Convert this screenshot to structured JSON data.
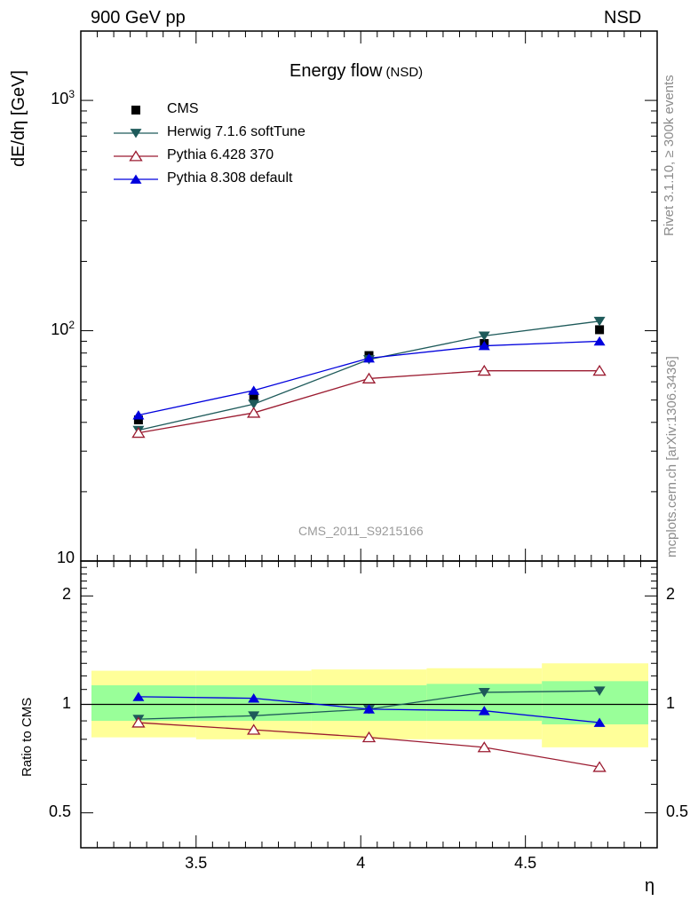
{
  "header": {
    "left": "900 GeV pp",
    "right": "NSD"
  },
  "side_labels": {
    "rivet": "Rivet 3.1.10, ≥ 300k events",
    "mcplots": "mcplots.cern.ch [arXiv:1306.3436]"
  },
  "chart_data": [
    {
      "type": "line",
      "title": "Energy flow",
      "title_suffix": "(NSD)",
      "ylabel": "dE/dη [GeV]",
      "xlabel": "η",
      "yscale": "log",
      "ylim": [
        10,
        2000
      ],
      "xlim": [
        3.15,
        4.9
      ],
      "watermark": "CMS_2011_S9215166",
      "y_ticks": [
        {
          "value": 10,
          "label": "10"
        },
        {
          "value": 100,
          "label": "10",
          "exp": "2"
        },
        {
          "value": 1000,
          "label": "10",
          "exp": "3"
        }
      ],
      "x": [
        3.325,
        3.675,
        4.025,
        4.375,
        4.725
      ],
      "series": [
        {
          "name": "CMS",
          "marker": "square",
          "color": "#000000",
          "line": false,
          "values": [
            41,
            52,
            78,
            88,
            101
          ]
        },
        {
          "name": "Herwig 7.1.6 softTune",
          "marker": "triangle-down",
          "color": "#1e5a5a",
          "line": true,
          "values": [
            37,
            48,
            75,
            95,
            110
          ]
        },
        {
          "name": "Pythia 6.428 370",
          "marker": "triangle-up-open",
          "color": "#9b1b30",
          "line": true,
          "values": [
            36,
            44,
            62,
            67,
            67
          ]
        },
        {
          "name": "Pythia 8.308 default",
          "marker": "triangle-up",
          "color": "#0000dd",
          "line": true,
          "values": [
            43,
            55,
            76,
            86,
            90
          ]
        }
      ]
    },
    {
      "type": "line",
      "ylabel": "Ratio to CMS",
      "xlabel": "η",
      "yscale": "log",
      "ylim": [
        0.4,
        2.5
      ],
      "xlim": [
        3.15,
        4.9
      ],
      "y_ticks": [
        {
          "value": 0.5,
          "label": "0.5"
        },
        {
          "value": 1,
          "label": "1"
        },
        {
          "value": 2,
          "label": "2"
        }
      ],
      "x_ticks": [
        {
          "value": 3.5,
          "label": "3.5"
        },
        {
          "value": 4,
          "label": "4"
        },
        {
          "value": 4.5,
          "label": "4.5"
        }
      ],
      "bands": {
        "bin_edges": [
          3.15,
          3.5,
          3.85,
          4.2,
          4.55,
          4.9
        ],
        "yellow_lo": [
          0.81,
          0.8,
          0.8,
          0.8,
          0.76
        ],
        "yellow_hi": [
          1.24,
          1.24,
          1.25,
          1.26,
          1.3
        ],
        "green_lo": [
          0.9,
          0.9,
          0.9,
          0.9,
          0.88
        ],
        "green_hi": [
          1.13,
          1.13,
          1.13,
          1.14,
          1.16
        ],
        "yellow_color": "#ffff99",
        "green_color": "#99ff99"
      },
      "series": [
        {
          "name": "Herwig 7.1.6 softTune",
          "values": [
            0.91,
            0.93,
            0.97,
            1.08,
            1.09
          ]
        },
        {
          "name": "Pythia 6.428 370",
          "values": [
            0.89,
            0.85,
            0.81,
            0.76,
            0.67
          ]
        },
        {
          "name": "Pythia 8.308 default",
          "values": [
            1.05,
            1.04,
            0.97,
            0.96,
            0.89
          ]
        }
      ]
    }
  ]
}
